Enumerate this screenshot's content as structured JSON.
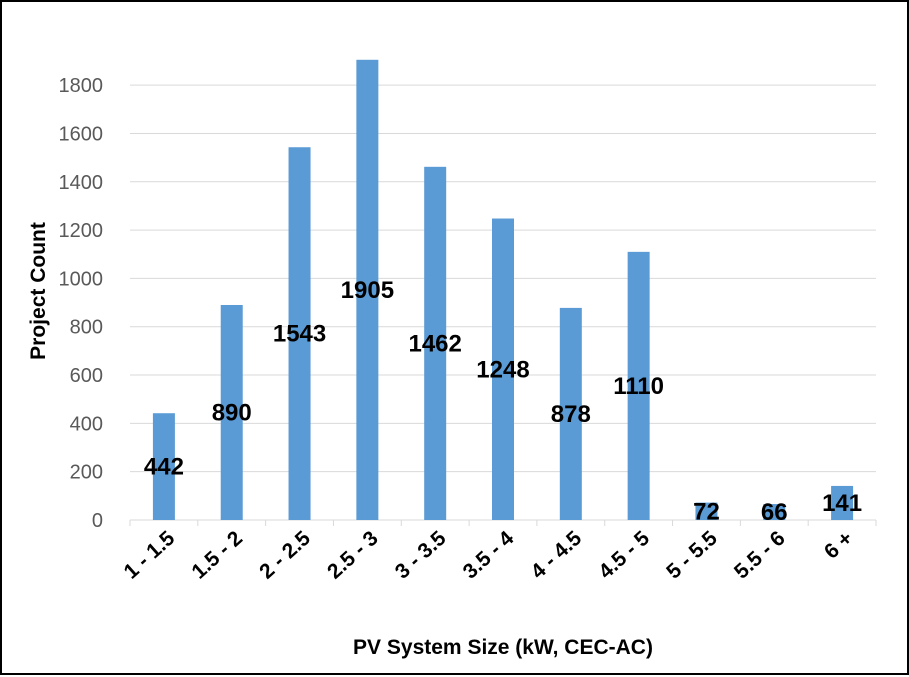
{
  "chart_data": {
    "type": "bar",
    "title": "",
    "xlabel": "PV System Size (kW, CEC-AC)",
    "ylabel": "Project Count",
    "categories": [
      "1 - 1.5",
      "1.5 - 2",
      "2 - 2.5",
      "2.5 - 3",
      "3 - 3.5",
      "3.5 - 4",
      "4 - 4.5",
      "4.5 - 5",
      "5 - 5.5",
      "5.5 - 6",
      "6 +"
    ],
    "series": [
      {
        "values": [
          442,
          890,
          1543,
          1905,
          1462,
          1248,
          878,
          1110,
          72,
          66,
          141
        ],
        "color": "#5b9bd5"
      }
    ],
    "data_labels": [
      "442",
      "890",
      "1543",
      "1905",
      "1462",
      "1248",
      "878",
      "1110",
      "72",
      "66",
      "141"
    ],
    "ylim": [
      0,
      1900
    ],
    "yticks": [
      0,
      200,
      400,
      600,
      800,
      1000,
      1200,
      1400,
      1600,
      1800
    ],
    "ytick_labels": [
      "0",
      "200",
      "400",
      "600",
      "800",
      "1000",
      "1200",
      "1400",
      "1600",
      "1800"
    ],
    "grid": true,
    "gridline_color": "#d9d9d9",
    "legend": "none"
  }
}
